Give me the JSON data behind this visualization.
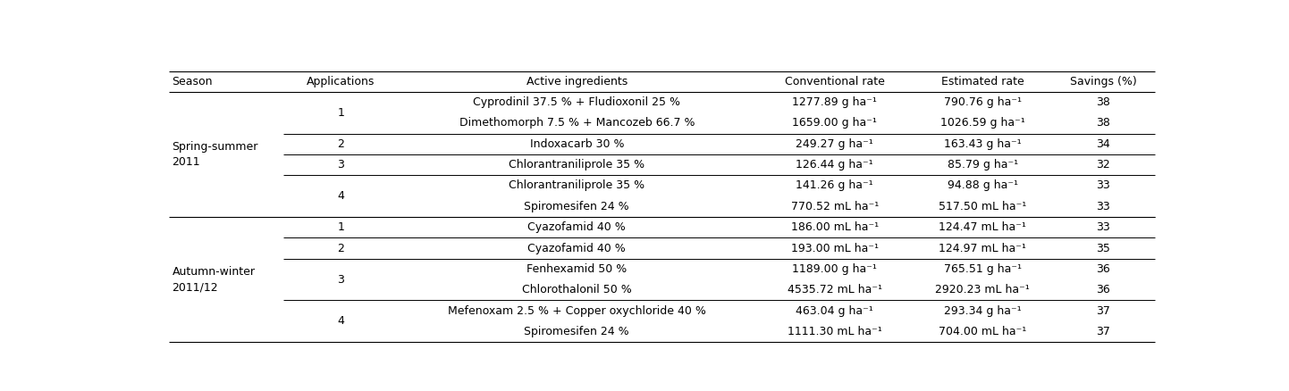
{
  "columns": [
    "Season",
    "Applications",
    "Active ingredients",
    "Conventional rate",
    "Estimated rate",
    "Savings (%)"
  ],
  "rows": [
    {
      "ingredient": "Cyprodinil 37.5 % + Fludioxonil 25 %",
      "conv_rate": "1277.89 g ha⁻¹",
      "est_rate": "790.76 g ha⁻¹",
      "savings": "38"
    },
    {
      "ingredient": "Dimethomorph 7.5 % + Mancozeb 66.7 %",
      "conv_rate": "1659.00 g ha⁻¹",
      "est_rate": "1026.59 g ha⁻¹",
      "savings": "38"
    },
    {
      "ingredient": "Indoxacarb 30 %",
      "conv_rate": "249.27 g ha⁻¹",
      "est_rate": "163.43 g ha⁻¹",
      "savings": "34"
    },
    {
      "ingredient": "Chlorantraniliprole 35 %",
      "conv_rate": "126.44 g ha⁻¹",
      "est_rate": "85.79 g ha⁻¹",
      "savings": "32"
    },
    {
      "ingredient": "Chlorantraniliprole 35 %",
      "conv_rate": "141.26 g ha⁻¹",
      "est_rate": "94.88 g ha⁻¹",
      "savings": "33"
    },
    {
      "ingredient": "Spiromesifen 24 %",
      "conv_rate": "770.52 mL ha⁻¹",
      "est_rate": "517.50 mL ha⁻¹",
      "savings": "33"
    },
    {
      "ingredient": "Cyazofamid 40 %",
      "conv_rate": "186.00 mL ha⁻¹",
      "est_rate": "124.47 mL ha⁻¹",
      "savings": "33"
    },
    {
      "ingredient": "Cyazofamid 40 %",
      "conv_rate": "193.00 mL ha⁻¹",
      "est_rate": "124.97 mL ha⁻¹",
      "savings": "35"
    },
    {
      "ingredient": "Fenhexamid 50 %",
      "conv_rate": "1189.00 g ha⁻¹",
      "est_rate": "765.51 g ha⁻¹",
      "savings": "36"
    },
    {
      "ingredient": "Chlorothalonil 50 %",
      "conv_rate": "4535.72 mL ha⁻¹",
      "est_rate": "2920.23 mL ha⁻¹",
      "savings": "36"
    },
    {
      "ingredient": "Mefenoxam 2.5 % + Copper oxychloride 40 %",
      "conv_rate": "463.04 g ha⁻¹",
      "est_rate": "293.34 g ha⁻¹",
      "savings": "37"
    },
    {
      "ingredient": "Spiromesifen 24 %",
      "conv_rate": "1111.30 mL ha⁻¹",
      "est_rate": "704.00 mL ha⁻¹",
      "savings": "37"
    }
  ],
  "season_groups": [
    {
      "label": "Spring-summer\n2011",
      "rows": [
        0,
        1,
        2,
        3,
        4,
        5
      ]
    },
    {
      "label": "Autumn-winter\n2011/12",
      "rows": [
        6,
        7,
        8,
        9,
        10,
        11
      ]
    }
  ],
  "app_groups": [
    {
      "app": "1",
      "rows": [
        0,
        1
      ]
    },
    {
      "app": "2",
      "rows": [
        2
      ]
    },
    {
      "app": "3",
      "rows": [
        3
      ]
    },
    {
      "app": "4",
      "rows": [
        4,
        5
      ]
    },
    {
      "app": "1",
      "rows": [
        6
      ]
    },
    {
      "app": "2",
      "rows": [
        7
      ]
    },
    {
      "app": "3",
      "rows": [
        8,
        9
      ]
    },
    {
      "app": "4",
      "rows": [
        10,
        11
      ]
    }
  ],
  "separator_lines_after": [
    1,
    2,
    3,
    5,
    6,
    7,
    9
  ],
  "season_separator_after": 5,
  "font_size": 9.0,
  "background_color": "#ffffff",
  "text_color": "#000000"
}
